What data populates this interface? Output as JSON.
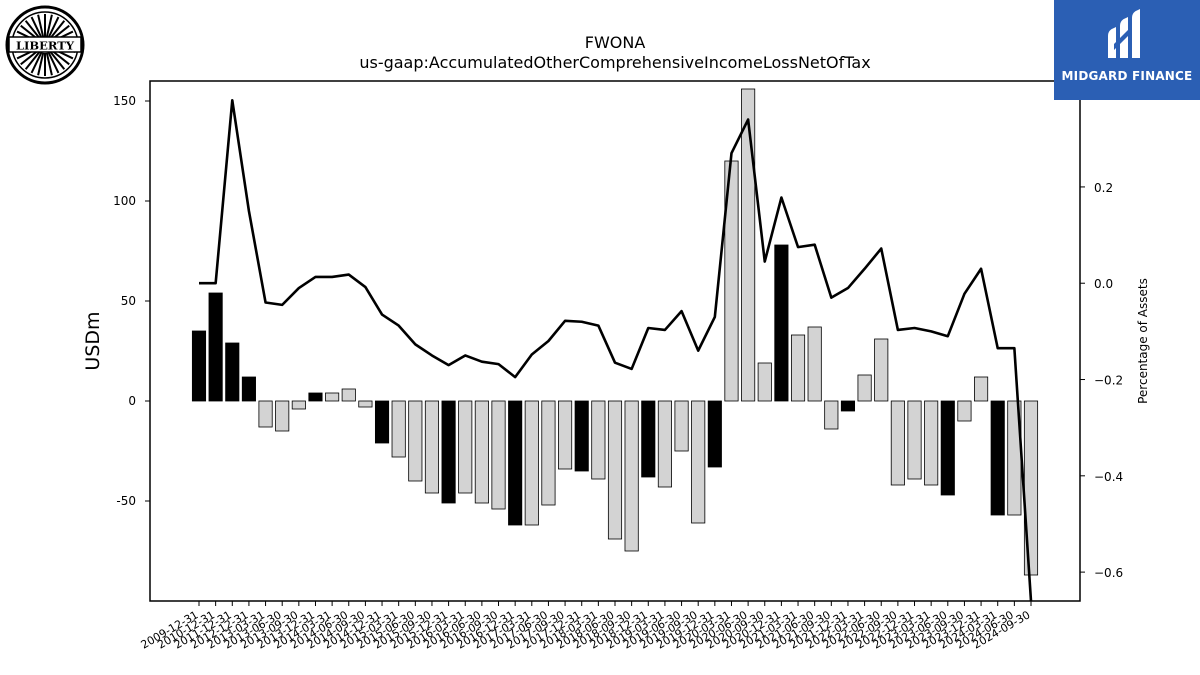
{
  "logo": {
    "text": "LIBERTY"
  },
  "brand": {
    "name": "MIDGARD FINANCE",
    "color": "#2b5fb4"
  },
  "chart_data": {
    "type": "bar",
    "title": "FWONA",
    "subtitle": "us-gaap:AccumulatedOtherComprehensiveIncomeLossNetOfTax",
    "ylabel": "USDm",
    "y2label": "Percentage of Assets",
    "ylim": [
      -100,
      160
    ],
    "y2lim": [
      -0.66,
      0.42
    ],
    "yticks": [
      -50,
      0,
      50,
      100,
      150
    ],
    "y2ticks": [
      -0.6,
      -0.4,
      -0.2,
      0.0,
      0.2
    ],
    "y2tick_labels": [
      "−0.6",
      "−0.4",
      "−0.2",
      "0.0",
      "0.2"
    ],
    "grid": false,
    "colors": {
      "highlight": "#000000",
      "normal": "#d3d3d3",
      "edge": "#000000",
      "line": "#000000"
    },
    "categories": [
      "2009-12-31",
      "2010-12-31",
      "2011-12-31",
      "2012-12-31",
      "2013-03-31",
      "2013-06-30",
      "2013-09-30",
      "2013-12-31",
      "2014-03-31",
      "2014-06-30",
      "2014-09-30",
      "2014-12-31",
      "2015-03-31",
      "2015-06-30",
      "2015-09-30",
      "2015-12-31",
      "2016-03-31",
      "2016-06-30",
      "2016-09-30",
      "2016-12-31",
      "2017-03-31",
      "2017-06-30",
      "2017-09-30",
      "2017-12-31",
      "2018-03-31",
      "2018-06-30",
      "2018-09-30",
      "2018-12-31",
      "2019-03-31",
      "2019-06-30",
      "2019-09-30",
      "2019-12-31",
      "2020-03-31",
      "2020-06-30",
      "2020-09-30",
      "2020-12-31",
      "2021-03-31",
      "2021-06-30",
      "2021-09-30",
      "2021-12-31",
      "2022-03-31",
      "2022-06-30",
      "2022-09-30",
      "2022-12-31",
      "2023-03-31",
      "2023-06-30",
      "2023-09-30",
      "2023-12-31",
      "2024-03-31",
      "2024-06-30",
      "2024-09-30"
    ],
    "xtick_labels": [
      "2009-12-31",
      "2010-12-31",
      "2011-12-31",
      "2012-12-31",
      "2013-03-31",
      "2013-06-30",
      "2013-09-30",
      "2013-12-31",
      "2014-03-31",
      "2014-06-30",
      "2014-09-30",
      "2014-12-31",
      "2015-03-31",
      "2015-06-30",
      "2015-09-30",
      "2015-12-31",
      "2016-03-31",
      "2016-06-30",
      "2016-09-30",
      "2016-12-31",
      "2017-03-31",
      "2017-06-30",
      "2017-09-30",
      "2017-12-31",
      "2018-03-31",
      "2018-06-30",
      "2018-09-30",
      "2018-12-31",
      "2019-03-31",
      "2019-06-30",
      "2019-09-30",
      "2019-12-31",
      "2020-03-31",
      "2020-06-30",
      "2020-09-30",
      "2020-12-31",
      "2021-03-31",
      "2021-06-30",
      "2021-09-30",
      "2021-12-31",
      "2022-03-31",
      "2022-06-30",
      "2022-09-30",
      "2022-12-31",
      "2023-03-31",
      "2023-06-30",
      "2023-09-30",
      "2023-12-31",
      "2024-03-31",
      "2024-06-30",
      "2024-09-30"
    ],
    "values": [
      35,
      54,
      29,
      12,
      -13,
      -15,
      -4,
      4,
      4,
      6,
      -3,
      -21,
      -28,
      -40,
      -46,
      -51,
      -46,
      -51,
      -54,
      -62,
      -62,
      -52,
      -34,
      -35,
      -39,
      -69,
      -75,
      -38,
      -43,
      -25,
      -61,
      -33,
      120,
      156,
      19,
      78,
      33,
      37,
      -14,
      -5,
      13,
      31,
      -42,
      -39,
      -42,
      -47,
      -10,
      12,
      -57,
      -57,
      -87
    ],
    "highlight": [
      true,
      true,
      true,
      true,
      false,
      false,
      false,
      true,
      false,
      false,
      false,
      true,
      false,
      false,
      false,
      true,
      false,
      false,
      false,
      true,
      false,
      false,
      false,
      true,
      false,
      false,
      false,
      true,
      false,
      false,
      false,
      true,
      false,
      false,
      false,
      true,
      false,
      false,
      false,
      true,
      false,
      false,
      false,
      false,
      false,
      true,
      false,
      false,
      true,
      false,
      false
    ],
    "line_values": [
      0.0,
      0.0,
      0.38,
      0.15,
      -0.04,
      -0.045,
      -0.01,
      0.013,
      0.013,
      0.018,
      -0.008,
      -0.065,
      -0.088,
      -0.127,
      -0.15,
      -0.17,
      -0.15,
      -0.163,
      -0.168,
      -0.195,
      -0.148,
      -0.12,
      -0.078,
      -0.08,
      -0.088,
      -0.165,
      -0.178,
      -0.093,
      -0.097,
      -0.058,
      -0.14,
      -0.07,
      0.27,
      0.34,
      0.045,
      0.178,
      0.075,
      0.08,
      -0.03,
      -0.01,
      0.03,
      0.072,
      -0.097,
      -0.093,
      -0.1,
      -0.11,
      -0.022,
      0.03,
      -0.135,
      -0.135,
      -0.66
    ]
  }
}
